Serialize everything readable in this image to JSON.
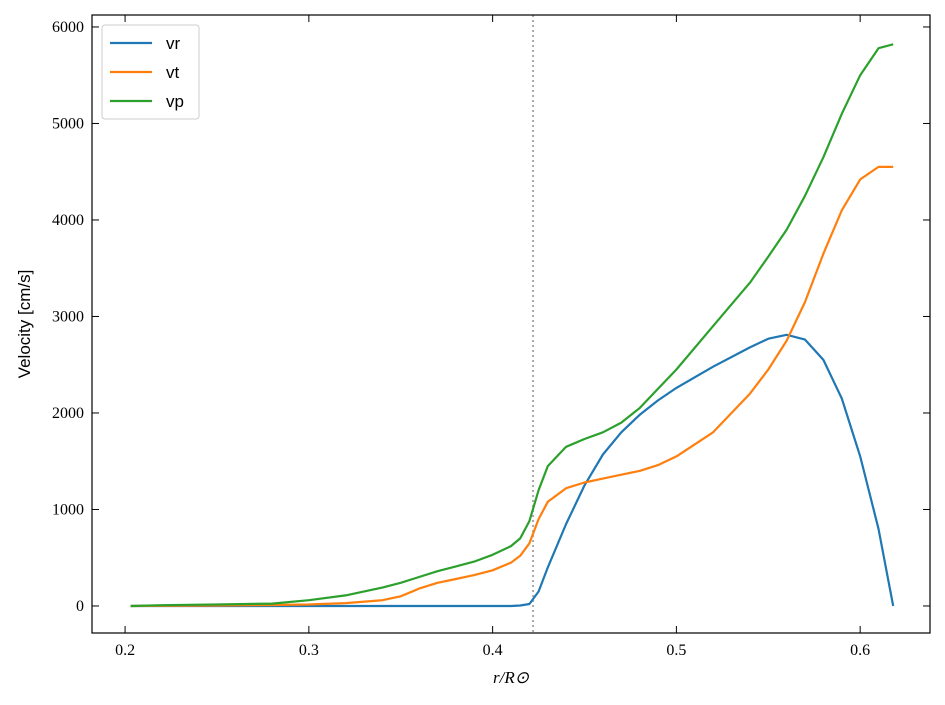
{
  "chart_data": {
    "type": "line",
    "xlabel": "r/R⊙",
    "ylabel": "Velocity [cm/s]",
    "x": [
      0.203,
      0.22,
      0.25,
      0.28,
      0.3,
      0.32,
      0.34,
      0.35,
      0.36,
      0.37,
      0.38,
      0.39,
      0.4,
      0.41,
      0.415,
      0.42,
      0.425,
      0.43,
      0.44,
      0.45,
      0.46,
      0.47,
      0.48,
      0.49,
      0.5,
      0.52,
      0.54,
      0.55,
      0.56,
      0.57,
      0.58,
      0.59,
      0.6,
      0.61,
      0.618
    ],
    "series": [
      {
        "name": "vr",
        "color": "#1f77b4",
        "values": [
          0,
          0,
          0,
          0,
          0,
          0,
          0,
          0,
          0,
          0,
          0,
          0,
          0,
          0,
          5,
          20,
          150,
          400,
          850,
          1250,
          1570,
          1800,
          1980,
          2130,
          2260,
          2480,
          2680,
          2770,
          2810,
          2760,
          2550,
          2150,
          1550,
          800,
          0
        ]
      },
      {
        "name": "vt",
        "color": "#ff7f0e",
        "values": [
          0,
          2,
          5,
          10,
          15,
          30,
          60,
          100,
          180,
          240,
          280,
          320,
          370,
          450,
          520,
          650,
          900,
          1080,
          1220,
          1280,
          1320,
          1360,
          1400,
          1460,
          1550,
          1800,
          2200,
          2450,
          2750,
          3150,
          3650,
          4100,
          4420,
          4550,
          4550
        ]
      },
      {
        "name": "vp",
        "color": "#2ca02c",
        "values": [
          0,
          8,
          15,
          25,
          60,
          110,
          190,
          240,
          300,
          360,
          410,
          460,
          530,
          620,
          700,
          880,
          1200,
          1450,
          1650,
          1730,
          1800,
          1900,
          2050,
          2250,
          2450,
          2900,
          3350,
          3620,
          3900,
          4250,
          4650,
          5100,
          5500,
          5780,
          5820
        ]
      }
    ],
    "vline": 0.422,
    "xlim": [
      0.182,
      0.638
    ],
    "ylim": [
      -280,
      6124
    ],
    "xticks": [
      0.2,
      0.3,
      0.4,
      0.5,
      0.6
    ],
    "yticks": [
      0,
      1000,
      2000,
      3000,
      4000,
      5000,
      6000
    ],
    "legend": "upper-left"
  }
}
